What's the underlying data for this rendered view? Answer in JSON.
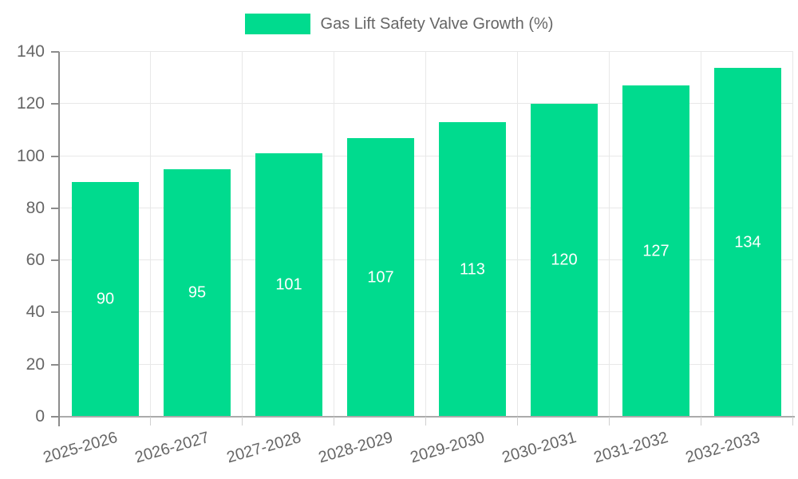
{
  "legend": {
    "label": "Gas Lift Safety Valve Growth (%)"
  },
  "colors": {
    "bar": "#00DB8E",
    "bar_label": "#FFFFFF",
    "axis_text": "#666666",
    "grid_line": "#E8E8E8",
    "axis_line": "#8C8C8C",
    "baseline": "#ABABAB",
    "minor_tick": "#D0D0D0",
    "background": "#FFFFFF"
  },
  "chart_data": {
    "type": "bar",
    "title": "Gas Lift Safety Valve Growth (%)",
    "categories": [
      "2025-2026",
      "2026-2027",
      "2027-2028",
      "2028-2029",
      "2029-2030",
      "2030-2031",
      "2031-2032",
      "2032-2033"
    ],
    "series": [
      {
        "name": "Gas Lift Safety Valve Growth (%)",
        "values": [
          90,
          95,
          101,
          107,
          113,
          120,
          127,
          134
        ]
      }
    ],
    "values": [
      90,
      95,
      101,
      107,
      113,
      120,
      127,
      134
    ],
    "data_labels": [
      90,
      95,
      101,
      107,
      113,
      120,
      127,
      134
    ],
    "xlabel": "",
    "ylabel": "",
    "ylim": [
      0,
      140
    ],
    "yticks": [
      0,
      20,
      40,
      60,
      80,
      100,
      120,
      140
    ],
    "grid": true,
    "legend_position": "top-center",
    "data_label_position": "inside-center",
    "x_label_rotation_deg": -16
  }
}
